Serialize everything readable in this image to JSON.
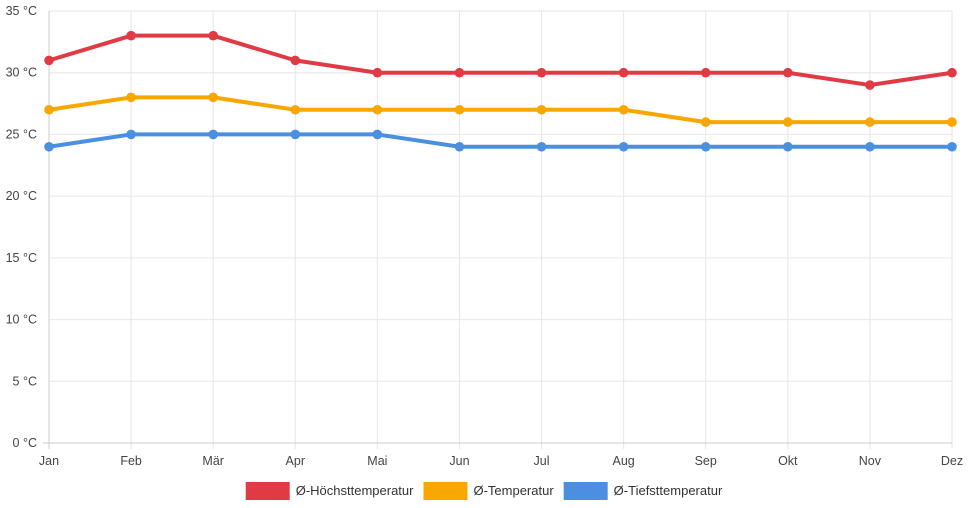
{
  "chart_data": {
    "type": "line",
    "categories": [
      "Jan",
      "Feb",
      "Mär",
      "Apr",
      "Mai",
      "Jun",
      "Jul",
      "Aug",
      "Sep",
      "Okt",
      "Nov",
      "Dez"
    ],
    "ylim": [
      0,
      35
    ],
    "ytick_step": 5,
    "ytick_labels": [
      "0 °C",
      "5 °C",
      "10 °C",
      "15 °C",
      "20 °C",
      "25 °C",
      "30 °C",
      "35 °C"
    ],
    "grid": true,
    "legend_position": "bottom-center",
    "series": [
      {
        "name": "Ø-Höchsttemperatur",
        "color": "#e03a45",
        "values": [
          31,
          33,
          33,
          31,
          30,
          30,
          30,
          30,
          30,
          30,
          29,
          30
        ]
      },
      {
        "name": "Ø-Temperatur",
        "color": "#f7a700",
        "values": [
          27,
          28,
          28,
          27,
          27,
          27,
          27,
          27,
          26,
          26,
          26,
          26
        ]
      },
      {
        "name": "Ø-Tiefsttemperatur",
        "color": "#4a8fe0",
        "values": [
          24,
          25,
          25,
          25,
          25,
          24,
          24,
          24,
          24,
          24,
          24,
          24
        ]
      }
    ]
  }
}
